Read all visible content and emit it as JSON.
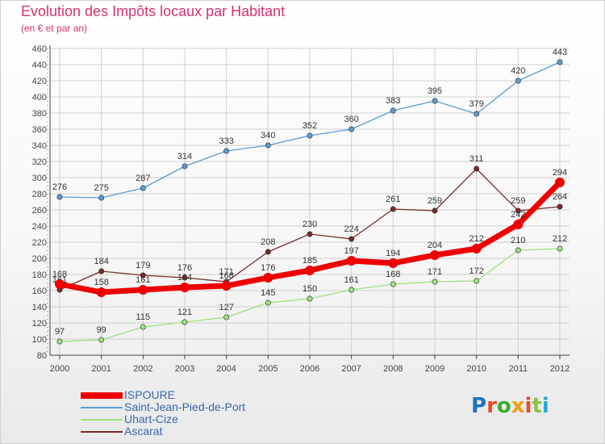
{
  "header": {
    "title": "Evolution des Impôts locaux par Habitant",
    "subtitle": "(en € et par an)"
  },
  "logo": {
    "text": "Proxiti",
    "colors": [
      "#1e73be",
      "#e84b2b",
      "#3aaa35",
      "#f39c12",
      "#e84b2b",
      "#8bc34a",
      "#2aa7d6"
    ]
  },
  "colors": {
    "title": "#d4326f",
    "legend_text": "#3a66b0",
    "axis": "#444444",
    "grid": "#cfcfcf"
  },
  "chart_data": {
    "type": "line",
    "title": "Evolution des Impôts locaux par Habitant",
    "subtitle": "(en € et par an)",
    "x": [
      "2000",
      "2001",
      "2002",
      "2003",
      "2004",
      "2005",
      "2006",
      "2007",
      "2008",
      "2009",
      "2010",
      "2011",
      "2012"
    ],
    "ylim": [
      80,
      460
    ],
    "yticks": [
      80,
      100,
      120,
      140,
      160,
      180,
      200,
      220,
      240,
      260,
      280,
      300,
      320,
      340,
      360,
      380,
      400,
      420,
      440,
      460
    ],
    "grid": true,
    "legend_position": "bottom-left",
    "series": [
      {
        "name": "ISPOURE",
        "color": "#ee0000",
        "values": [
          168,
          158,
          161,
          164,
          166,
          176,
          185,
          197,
          194,
          204,
          212,
          242,
          294
        ]
      },
      {
        "name": "Saint-Jean-Pied-de-Port",
        "color": "#5b9bd5",
        "values": [
          276,
          275,
          287,
          314,
          333,
          340,
          352,
          360,
          383,
          395,
          379,
          420,
          443
        ]
      },
      {
        "name": "Uhart-Cize",
        "color": "#9be37d",
        "values": [
          97,
          99,
          115,
          121,
          127,
          145,
          150,
          161,
          168,
          171,
          172,
          210,
          212
        ]
      },
      {
        "name": "Ascarat",
        "color": "#7a2a2a",
        "values": [
          161,
          184,
          179,
          176,
          171,
          208,
          230,
          224,
          261,
          259,
          311,
          259,
          264
        ]
      }
    ]
  }
}
